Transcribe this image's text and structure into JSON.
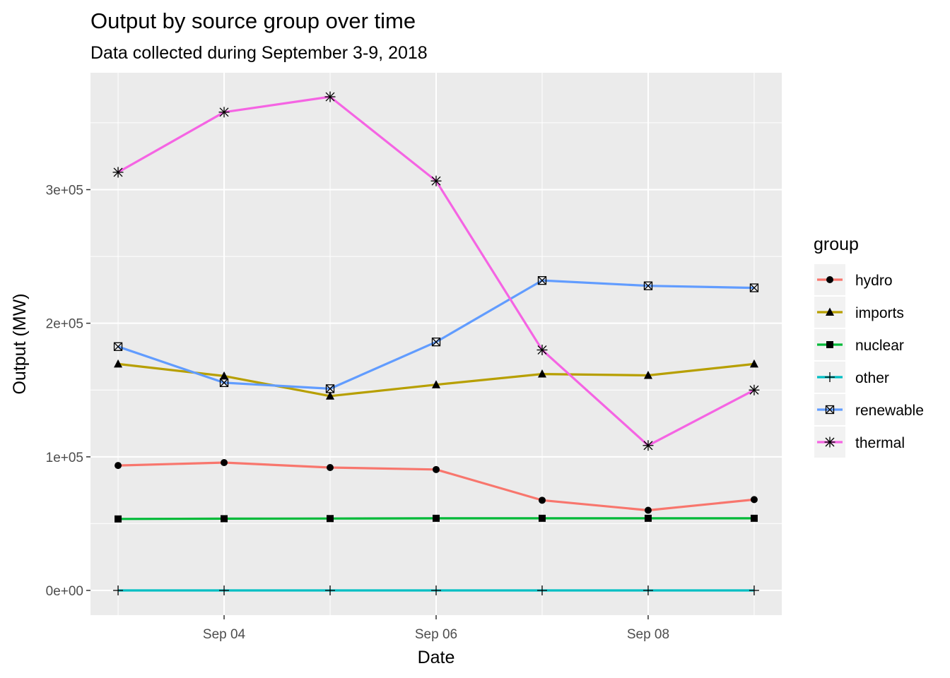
{
  "chart_data": {
    "type": "line",
    "title": "Output by source group over time",
    "subtitle": "Data collected during September 3-9, 2018",
    "xlabel": "Date",
    "ylabel": "Output (MW)",
    "x": [
      "2018-09-03",
      "2018-09-04",
      "2018-09-05",
      "2018-09-06",
      "2018-09-07",
      "2018-09-08",
      "2018-09-09"
    ],
    "x_ticks": [
      {
        "value": "2018-09-04",
        "label": "Sep 04"
      },
      {
        "value": "2018-09-06",
        "label": "Sep 06"
      },
      {
        "value": "2018-09-08",
        "label": "Sep 08"
      }
    ],
    "y_ticks": [
      {
        "value": 0,
        "label": "0e+00"
      },
      {
        "value": 100000,
        "label": "1e+05"
      },
      {
        "value": 200000,
        "label": "2e+05"
      },
      {
        "value": 300000,
        "label": "3e+05"
      }
    ],
    "xlim": [
      "2018-09-02 17:45",
      "2018-09-09 06:15"
    ],
    "ylim": [
      -18500,
      387500
    ],
    "grid": true,
    "legend": {
      "title": "group",
      "position": "right"
    },
    "series": [
      {
        "name": "hydro",
        "color": "#F8766D",
        "marker": "circle",
        "values": [
          93500,
          95700,
          92000,
          90500,
          67500,
          60000,
          68000
        ]
      },
      {
        "name": "imports",
        "color": "#B79F00",
        "marker": "triangle",
        "values": [
          169500,
          160500,
          145500,
          154000,
          162000,
          161000,
          169500
        ]
      },
      {
        "name": "nuclear",
        "color": "#00BA38",
        "marker": "square",
        "values": [
          53500,
          53700,
          53800,
          54000,
          54000,
          54000,
          54000
        ]
      },
      {
        "name": "other",
        "color": "#00BFC4",
        "marker": "plus",
        "values": [
          0,
          0,
          0,
          0,
          0,
          0,
          0
        ]
      },
      {
        "name": "renewable",
        "color": "#619CFF",
        "marker": "boxed-x",
        "values": [
          182500,
          155500,
          151000,
          186000,
          232000,
          228000,
          226500
        ]
      },
      {
        "name": "thermal",
        "color": "#F564E3",
        "marker": "asterisk",
        "values": [
          313000,
          358000,
          369500,
          306500,
          180000,
          108500,
          150000
        ]
      }
    ]
  }
}
